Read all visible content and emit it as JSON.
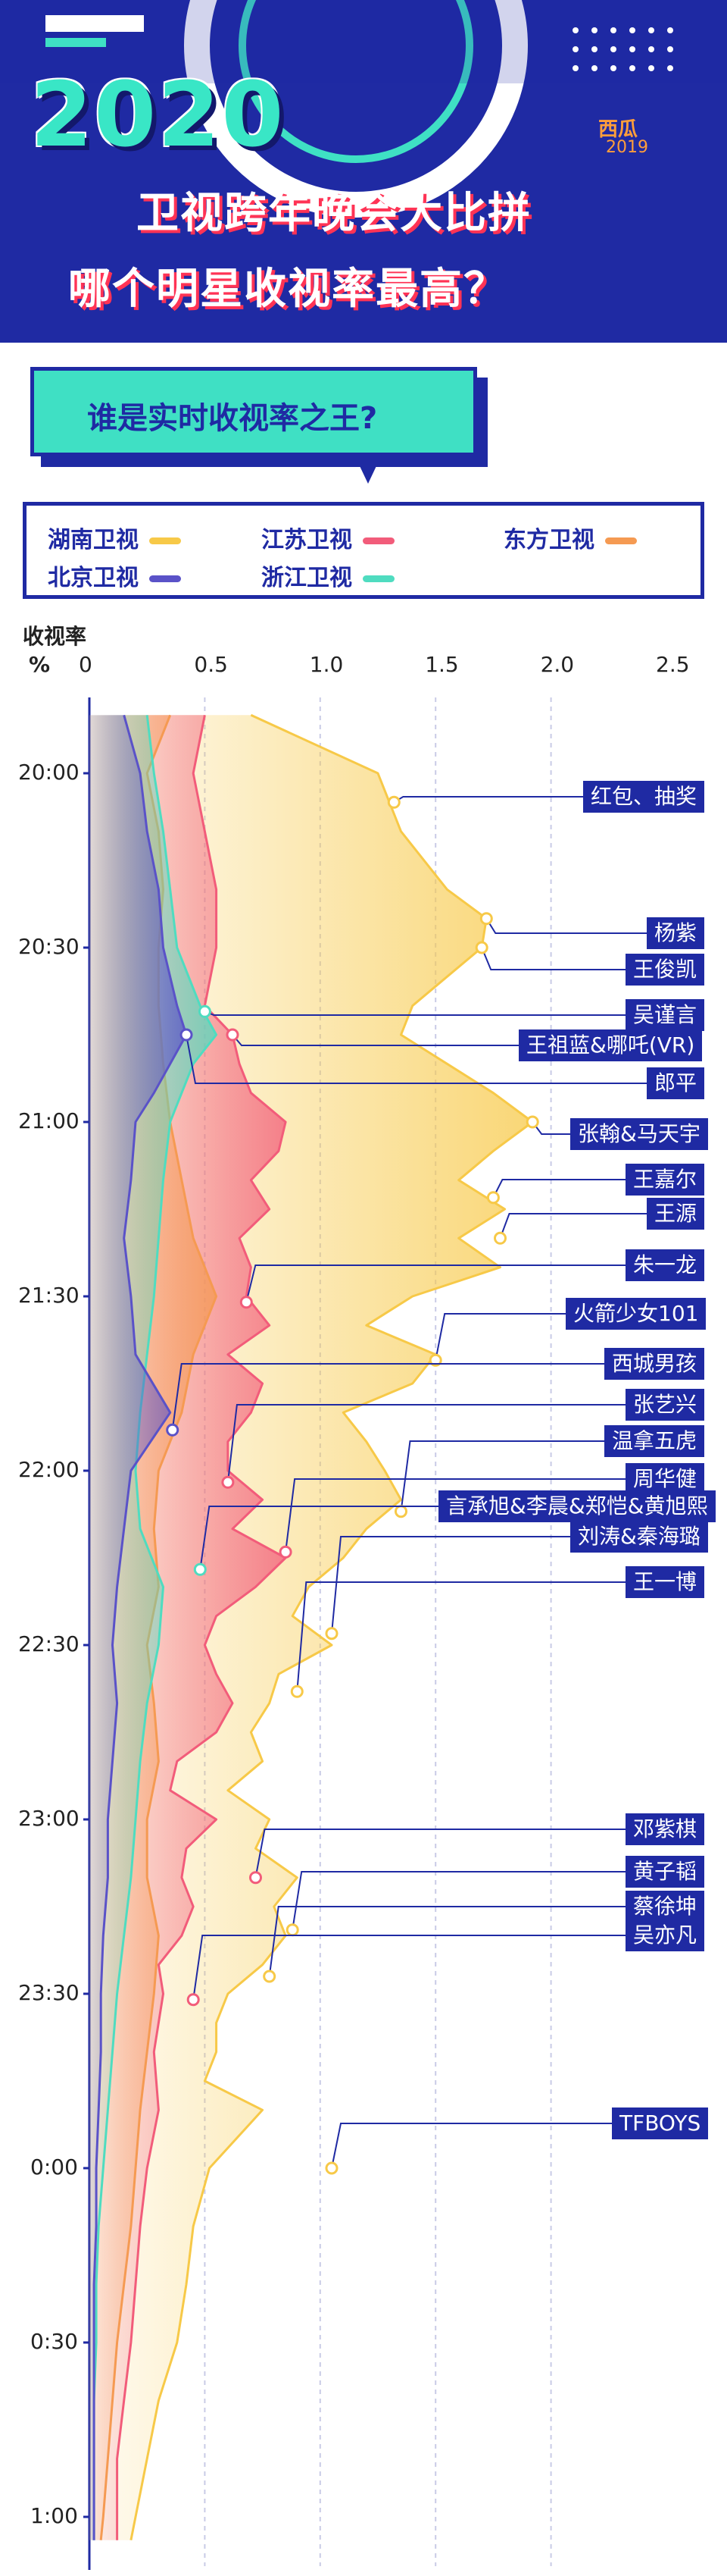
{
  "header": {
    "hero": "2020",
    "brand": "西瓜",
    "year": "2019",
    "title_line1": "卫视跨年晚会大比拼",
    "title_line2": "哪个明星收视率最高？"
  },
  "question": "谁是实时收视率之王?",
  "colors": {
    "湖南卫视": "#f7c948",
    "江苏卫视": "#f25c7a",
    "东方卫视": "#f59a52",
    "北京卫视": "#5a52c8",
    "浙江卫视": "#4fdcc0"
  },
  "chart_data": {
    "type": "area",
    "orientation": "vertical-time",
    "ylabel": "收视率",
    "unit": "%",
    "xlim": [
      0,
      2.5
    ],
    "x_ticks": [
      "0",
      "0.5",
      "1.0",
      "1.5",
      "2.0",
      "2.5"
    ],
    "time_ticks": [
      "20:00",
      "20:30",
      "21:00",
      "21:30",
      "22:00",
      "22:30",
      "23:00",
      "23:30",
      "0:00",
      "0:30",
      "1:00"
    ],
    "time_minutes": [
      0,
      30,
      60,
      90,
      120,
      150,
      180,
      210,
      240,
      270,
      300
    ],
    "legend": [
      "湖南卫视",
      "江苏卫视",
      "东方卫视",
      "北京卫视",
      "浙江卫视"
    ],
    "series": [
      {
        "name": "湖南卫视",
        "times": [
          -10,
          0,
          10,
          20,
          25,
          30,
          35,
          40,
          45,
          50,
          55,
          60,
          65,
          70,
          75,
          80,
          85,
          90,
          95,
          100,
          105,
          110,
          115,
          120,
          125,
          130,
          135,
          140,
          145,
          150,
          155,
          160,
          165,
          170,
          175,
          180,
          185,
          190,
          195,
          200,
          205,
          210,
          215,
          220,
          225,
          230,
          240,
          250,
          260,
          270,
          280,
          290,
          300,
          304
        ],
        "values": [
          0.7,
          1.25,
          1.35,
          1.55,
          1.72,
          1.7,
          1.55,
          1.4,
          1.35,
          1.55,
          1.75,
          1.92,
          1.75,
          1.6,
          1.8,
          1.6,
          1.78,
          1.4,
          1.2,
          1.5,
          1.4,
          1.1,
          1.2,
          1.28,
          1.35,
          1.2,
          1.1,
          0.95,
          0.88,
          1.05,
          0.82,
          0.78,
          0.7,
          0.75,
          0.6,
          0.78,
          0.72,
          0.9,
          0.8,
          0.85,
          0.75,
          0.6,
          0.55,
          0.55,
          0.5,
          0.75,
          0.52,
          0.45,
          0.42,
          0.38,
          0.3,
          0.25,
          0.2,
          0.18
        ]
      },
      {
        "name": "江苏卫视",
        "times": [
          -10,
          0,
          10,
          20,
          30,
          40,
          45,
          50,
          55,
          60,
          65,
          70,
          75,
          80,
          85,
          90,
          95,
          100,
          105,
          110,
          115,
          120,
          125,
          130,
          135,
          140,
          145,
          150,
          155,
          160,
          165,
          170,
          175,
          180,
          185,
          190,
          195,
          200,
          205,
          210,
          215,
          220,
          230,
          240,
          250,
          260,
          270,
          280,
          290,
          300,
          304
        ],
        "values": [
          0.5,
          0.45,
          0.5,
          0.55,
          0.55,
          0.5,
          0.62,
          0.65,
          0.7,
          0.85,
          0.82,
          0.7,
          0.78,
          0.65,
          0.7,
          0.68,
          0.78,
          0.6,
          0.75,
          0.7,
          0.6,
          0.6,
          0.75,
          0.62,
          0.85,
          0.72,
          0.55,
          0.5,
          0.55,
          0.62,
          0.55,
          0.38,
          0.35,
          0.55,
          0.42,
          0.4,
          0.45,
          0.4,
          0.3,
          0.32,
          0.3,
          0.28,
          0.3,
          0.25,
          0.22,
          0.2,
          0.18,
          0.15,
          0.12,
          0.12,
          0.12
        ]
      },
      {
        "name": "东方卫视",
        "times": [
          -10,
          0,
          10,
          20,
          30,
          40,
          50,
          60,
          70,
          80,
          90,
          100,
          110,
          120,
          130,
          140,
          150,
          160,
          170,
          180,
          190,
          200,
          210,
          220,
          230,
          240,
          250,
          260,
          270,
          280,
          290,
          300,
          304
        ],
        "values": [
          0.35,
          0.25,
          0.3,
          0.32,
          0.3,
          0.3,
          0.32,
          0.35,
          0.4,
          0.45,
          0.55,
          0.45,
          0.4,
          0.3,
          0.28,
          0.3,
          0.25,
          0.28,
          0.3,
          0.25,
          0.25,
          0.3,
          0.28,
          0.25,
          0.22,
          0.2,
          0.18,
          0.15,
          0.12,
          0.1,
          0.08,
          0.06,
          0.05
        ]
      },
      {
        "name": "浙江卫视",
        "times": [
          -10,
          0,
          10,
          20,
          30,
          40,
          45,
          50,
          55,
          60,
          70,
          80,
          90,
          100,
          110,
          120,
          130,
          140,
          150,
          160,
          170,
          180,
          190,
          200,
          210,
          220,
          230,
          240,
          250,
          260,
          270,
          280,
          290,
          300,
          304
        ],
        "values": [
          0.25,
          0.28,
          0.32,
          0.35,
          0.38,
          0.48,
          0.55,
          0.45,
          0.4,
          0.35,
          0.32,
          0.3,
          0.28,
          0.25,
          0.22,
          0.2,
          0.22,
          0.32,
          0.3,
          0.25,
          0.22,
          0.2,
          0.18,
          0.15,
          0.12,
          0.1,
          0.08,
          0.06,
          0.04,
          0.03,
          0.03,
          0.02,
          0.02,
          0.02,
          0.02
        ]
      },
      {
        "name": "北京卫视",
        "times": [
          -10,
          0,
          10,
          20,
          30,
          40,
          45,
          50,
          55,
          60,
          70,
          80,
          90,
          100,
          110,
          120,
          130,
          140,
          150,
          160,
          170,
          180,
          190,
          200,
          210,
          220,
          230,
          240,
          250,
          260,
          270,
          280,
          290,
          300,
          304
        ],
        "values": [
          0.15,
          0.22,
          0.25,
          0.3,
          0.32,
          0.38,
          0.42,
          0.35,
          0.28,
          0.2,
          0.18,
          0.15,
          0.18,
          0.2,
          0.35,
          0.18,
          0.15,
          0.12,
          0.1,
          0.12,
          0.1,
          0.08,
          0.08,
          0.06,
          0.05,
          0.05,
          0.04,
          0.03,
          0.03,
          0.02,
          0.02,
          0.02,
          0.02,
          0.02,
          0.02
        ]
      }
    ],
    "annotations": [
      {
        "label": "红包、抽奖",
        "time": 5,
        "value": 1.32,
        "series": "湖南卫视"
      },
      {
        "label": "杨紫",
        "time": 25,
        "value": 1.72,
        "series": "湖南卫视"
      },
      {
        "label": "王俊凯",
        "time": 30,
        "value": 1.7,
        "series": "湖南卫视"
      },
      {
        "label": "吴谨言",
        "time": 41,
        "value": 0.5,
        "series": "浙江卫视"
      },
      {
        "label": "王祖蓝&哪吒(VR)",
        "time": 45,
        "value": 0.62,
        "series": "江苏卫视"
      },
      {
        "label": "郎平",
        "time": 45,
        "value": 0.42,
        "series": "北京卫视"
      },
      {
        "label": "张翰&马天宇",
        "time": 60,
        "value": 1.92,
        "series": "湖南卫视"
      },
      {
        "label": "王嘉尔",
        "time": 73,
        "value": 1.75,
        "series": "湖南卫视"
      },
      {
        "label": "王源",
        "time": 80,
        "value": 1.78,
        "series": "湖南卫视"
      },
      {
        "label": "朱一龙",
        "time": 91,
        "value": 0.68,
        "series": "江苏卫视"
      },
      {
        "label": "火箭少女101",
        "time": 101,
        "value": 1.5,
        "series": "湖南卫视"
      },
      {
        "label": "西城男孩",
        "time": 113,
        "value": 0.36,
        "series": "北京卫视"
      },
      {
        "label": "张艺兴",
        "time": 122,
        "value": 0.6,
        "series": "江苏卫视"
      },
      {
        "label": "温拿五虎",
        "time": 127,
        "value": 1.35,
        "series": "湖南卫视"
      },
      {
        "label": "周华健",
        "time": 134,
        "value": 0.85,
        "series": "江苏卫视"
      },
      {
        "label": "言承旭&李晨&郑恺&黄旭熙",
        "time": 137,
        "value": 0.48,
        "series": "浙江卫视"
      },
      {
        "label": "刘涛&秦海璐",
        "time": 148,
        "value": 1.05,
        "series": "湖南卫视"
      },
      {
        "label": "王一博",
        "time": 158,
        "value": 0.9,
        "series": "湖南卫视"
      },
      {
        "label": "邓紫棋",
        "time": 190,
        "value": 0.72,
        "series": "江苏卫视"
      },
      {
        "label": "黄子韬",
        "time": 199,
        "value": 0.88,
        "series": "湖南卫视"
      },
      {
        "label": "蔡徐坤",
        "time": 207,
        "value": 0.78,
        "series": "湖南卫视"
      },
      {
        "label": "吴亦凡",
        "time": 211,
        "value": 0.45,
        "series": "江苏卫视"
      },
      {
        "label": "TFBOYS",
        "time": 240,
        "value": 1.05,
        "series": "湖南卫视"
      }
    ]
  }
}
